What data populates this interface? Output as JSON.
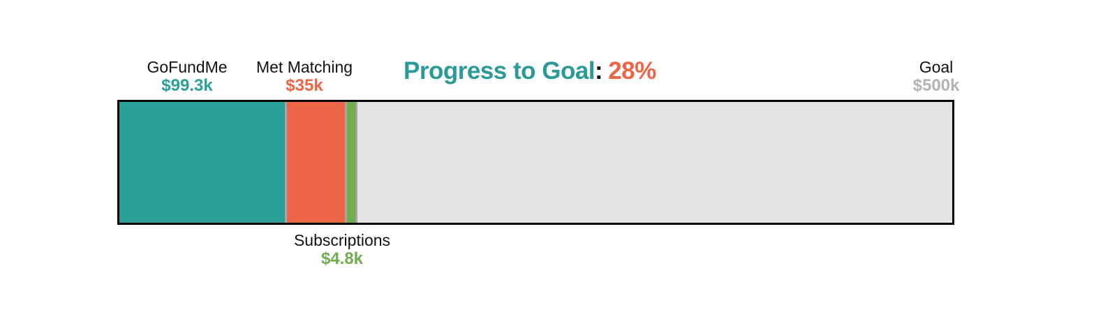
{
  "chart_data": {
    "type": "bar",
    "title": "Progress to Goal",
    "colon": ":",
    "progress_pct": "28%",
    "goal": {
      "label": "Goal",
      "display": "$500k",
      "amount": 500000,
      "value_text_color": "#b3b3b3"
    },
    "segments": [
      {
        "label": "GoFundMe",
        "display": "$99.3k",
        "amount": 99300,
        "color": "#2aa099",
        "label_side": "top"
      },
      {
        "label": "Met Matching",
        "display": "$35k",
        "amount": 35000,
        "color": "#ed6446",
        "label_side": "top"
      },
      {
        "label": "Subscriptions",
        "display": "$4.8k",
        "amount": 4800,
        "color": "#6fad4e",
        "label_side": "bottom"
      }
    ],
    "track_color": "#e4e4e4",
    "separator_color": "#a6a6a6",
    "bar_border_color": "#000000",
    "title_color": "#2a9a97",
    "pct_color": "#ed6446",
    "layout": {
      "orientation": "horizontal",
      "legend": "none",
      "grid": false,
      "xlim": [
        0,
        500000
      ]
    }
  }
}
